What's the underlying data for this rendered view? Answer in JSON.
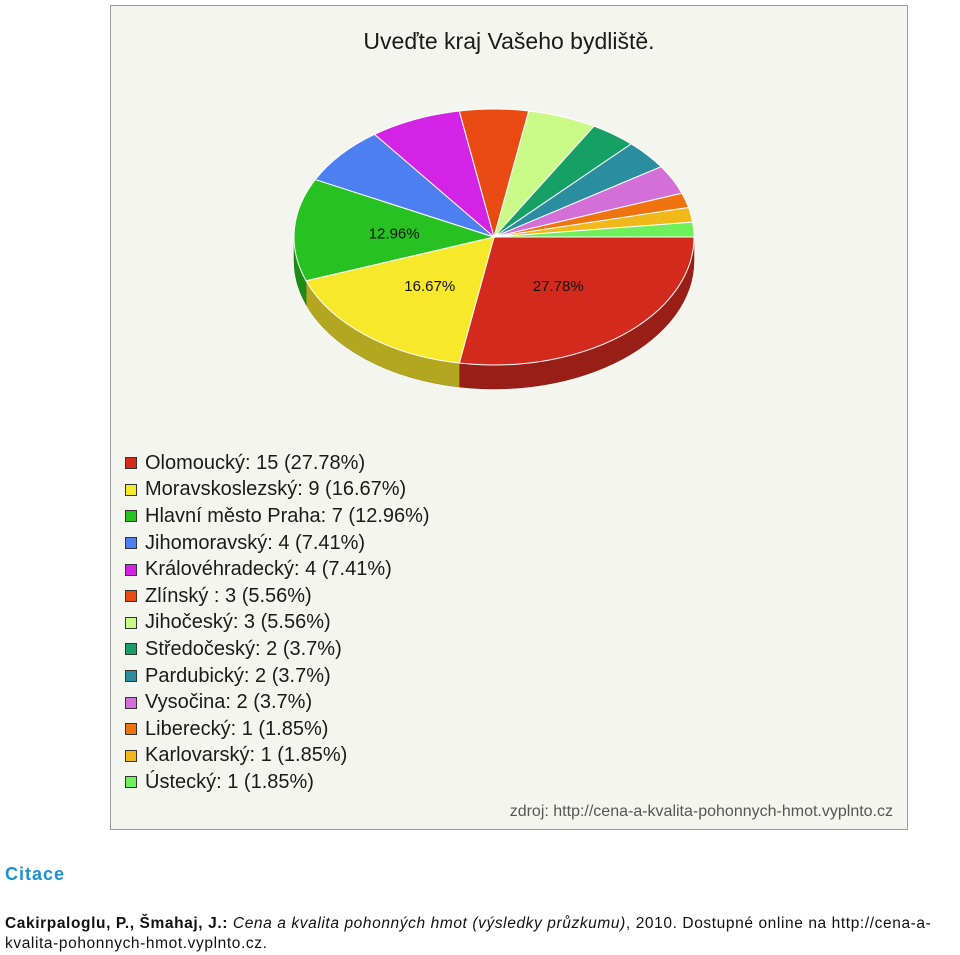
{
  "chart_data": {
    "type": "pie",
    "title": "Uveďte kraj Vašeho bydliště.",
    "source": "zdroj: http://cena-a-kvalita-pohonnych-hmot.vyplnto.cz",
    "slices": [
      {
        "legend": "Olomoucký: 15 (27.78%)",
        "value": 15,
        "percent": 27.78,
        "label": "27.78%",
        "color": "#d42a1e"
      },
      {
        "legend": "Moravskoslezský: 9 (16.67%)",
        "value": 9,
        "percent": 16.67,
        "label": "16.67%",
        "color": "#f7e82a"
      },
      {
        "legend": "Hlavní město Praha: 7 (12.96%)",
        "value": 7,
        "percent": 12.96,
        "label": "12.96%",
        "color": "#27c222"
      },
      {
        "legend": "Jihomoravský: 4 (7.41%)",
        "value": 4,
        "percent": 7.41,
        "label": "",
        "color": "#4d7ff0"
      },
      {
        "legend": "Královéhradecký: 4 (7.41%)",
        "value": 4,
        "percent": 7.41,
        "label": "",
        "color": "#d324e6"
      },
      {
        "legend": "Zlínský : 3 (5.56%)",
        "value": 3,
        "percent": 5.56,
        "label": "",
        "color": "#e84a12"
      },
      {
        "legend": "Jihočeský: 3 (5.56%)",
        "value": 3,
        "percent": 5.56,
        "label": "",
        "color": "#c9f987"
      },
      {
        "legend": "Středočeský: 2 (3.7%)",
        "value": 2,
        "percent": 3.7,
        "label": "",
        "color": "#16a066"
      },
      {
        "legend": "Pardubický: 2 (3.7%)",
        "value": 2,
        "percent": 3.7,
        "label": "",
        "color": "#2a8ea0"
      },
      {
        "legend": "Vysočina: 2 (3.7%)",
        "value": 2,
        "percent": 3.7,
        "label": "",
        "color": "#d36fd6"
      },
      {
        "legend": "Liberecký: 1 (1.85%)",
        "value": 1,
        "percent": 1.85,
        "label": "",
        "color": "#ef7410"
      },
      {
        "legend": "Karlovarský: 1 (1.85%)",
        "value": 1,
        "percent": 1.85,
        "label": "",
        "color": "#f0b818"
      },
      {
        "legend": "Ústecký: 1 (1.85%)",
        "value": 1,
        "percent": 1.85,
        "label": "",
        "color": "#6ef05a"
      }
    ]
  },
  "citation": {
    "heading": "Citace",
    "authors": "Cakirpaloglu, P., Šmahaj, J.:",
    "work": "Cena a kvalita pohonných hmot (výsledky průzkumu)",
    "rest": ", 2010. Dostupné online na http://cena-a-kvalita-pohonnych-hmot.vyplnto.cz."
  }
}
